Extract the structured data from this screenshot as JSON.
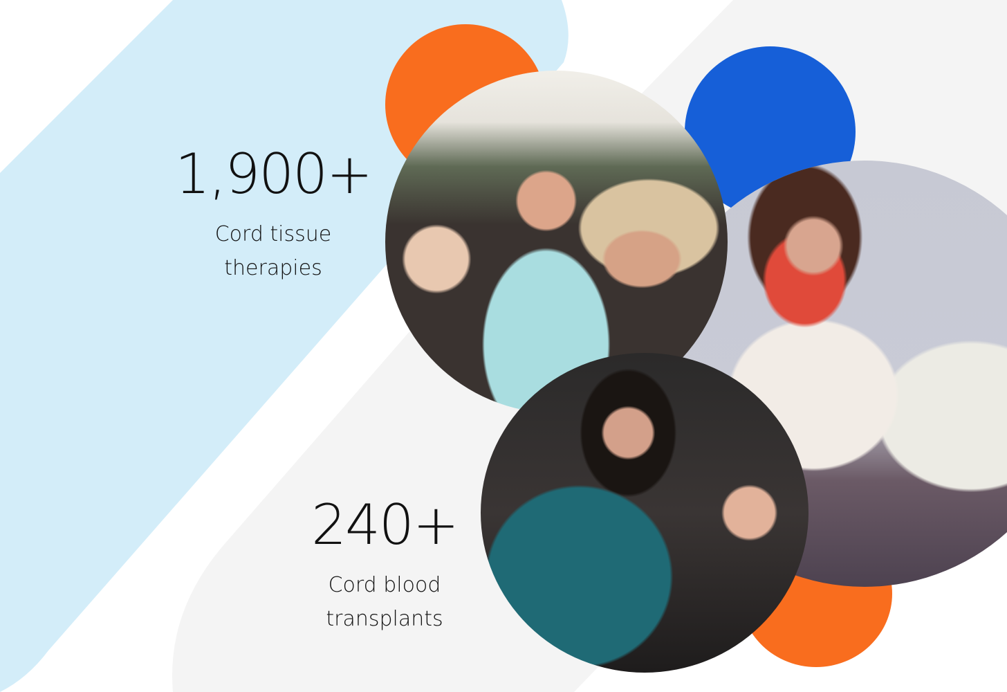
{
  "stats": [
    {
      "value": "1,900+",
      "label_line1": "Cord tissue",
      "label_line2": "therapies"
    },
    {
      "value": "240+",
      "label_line1": "Cord blood",
      "label_line2": "transplants"
    }
  ],
  "colors": {
    "light_blue_band": "#d3edf9",
    "light_gray_band": "#f4f4f4",
    "orange": "#f96d1e",
    "blue": "#165fd8"
  },
  "photos": [
    {
      "name": "cyclist-family-photo"
    },
    {
      "name": "mother-and-son-photo"
    },
    {
      "name": "mother-and-daughter-photo"
    }
  ]
}
